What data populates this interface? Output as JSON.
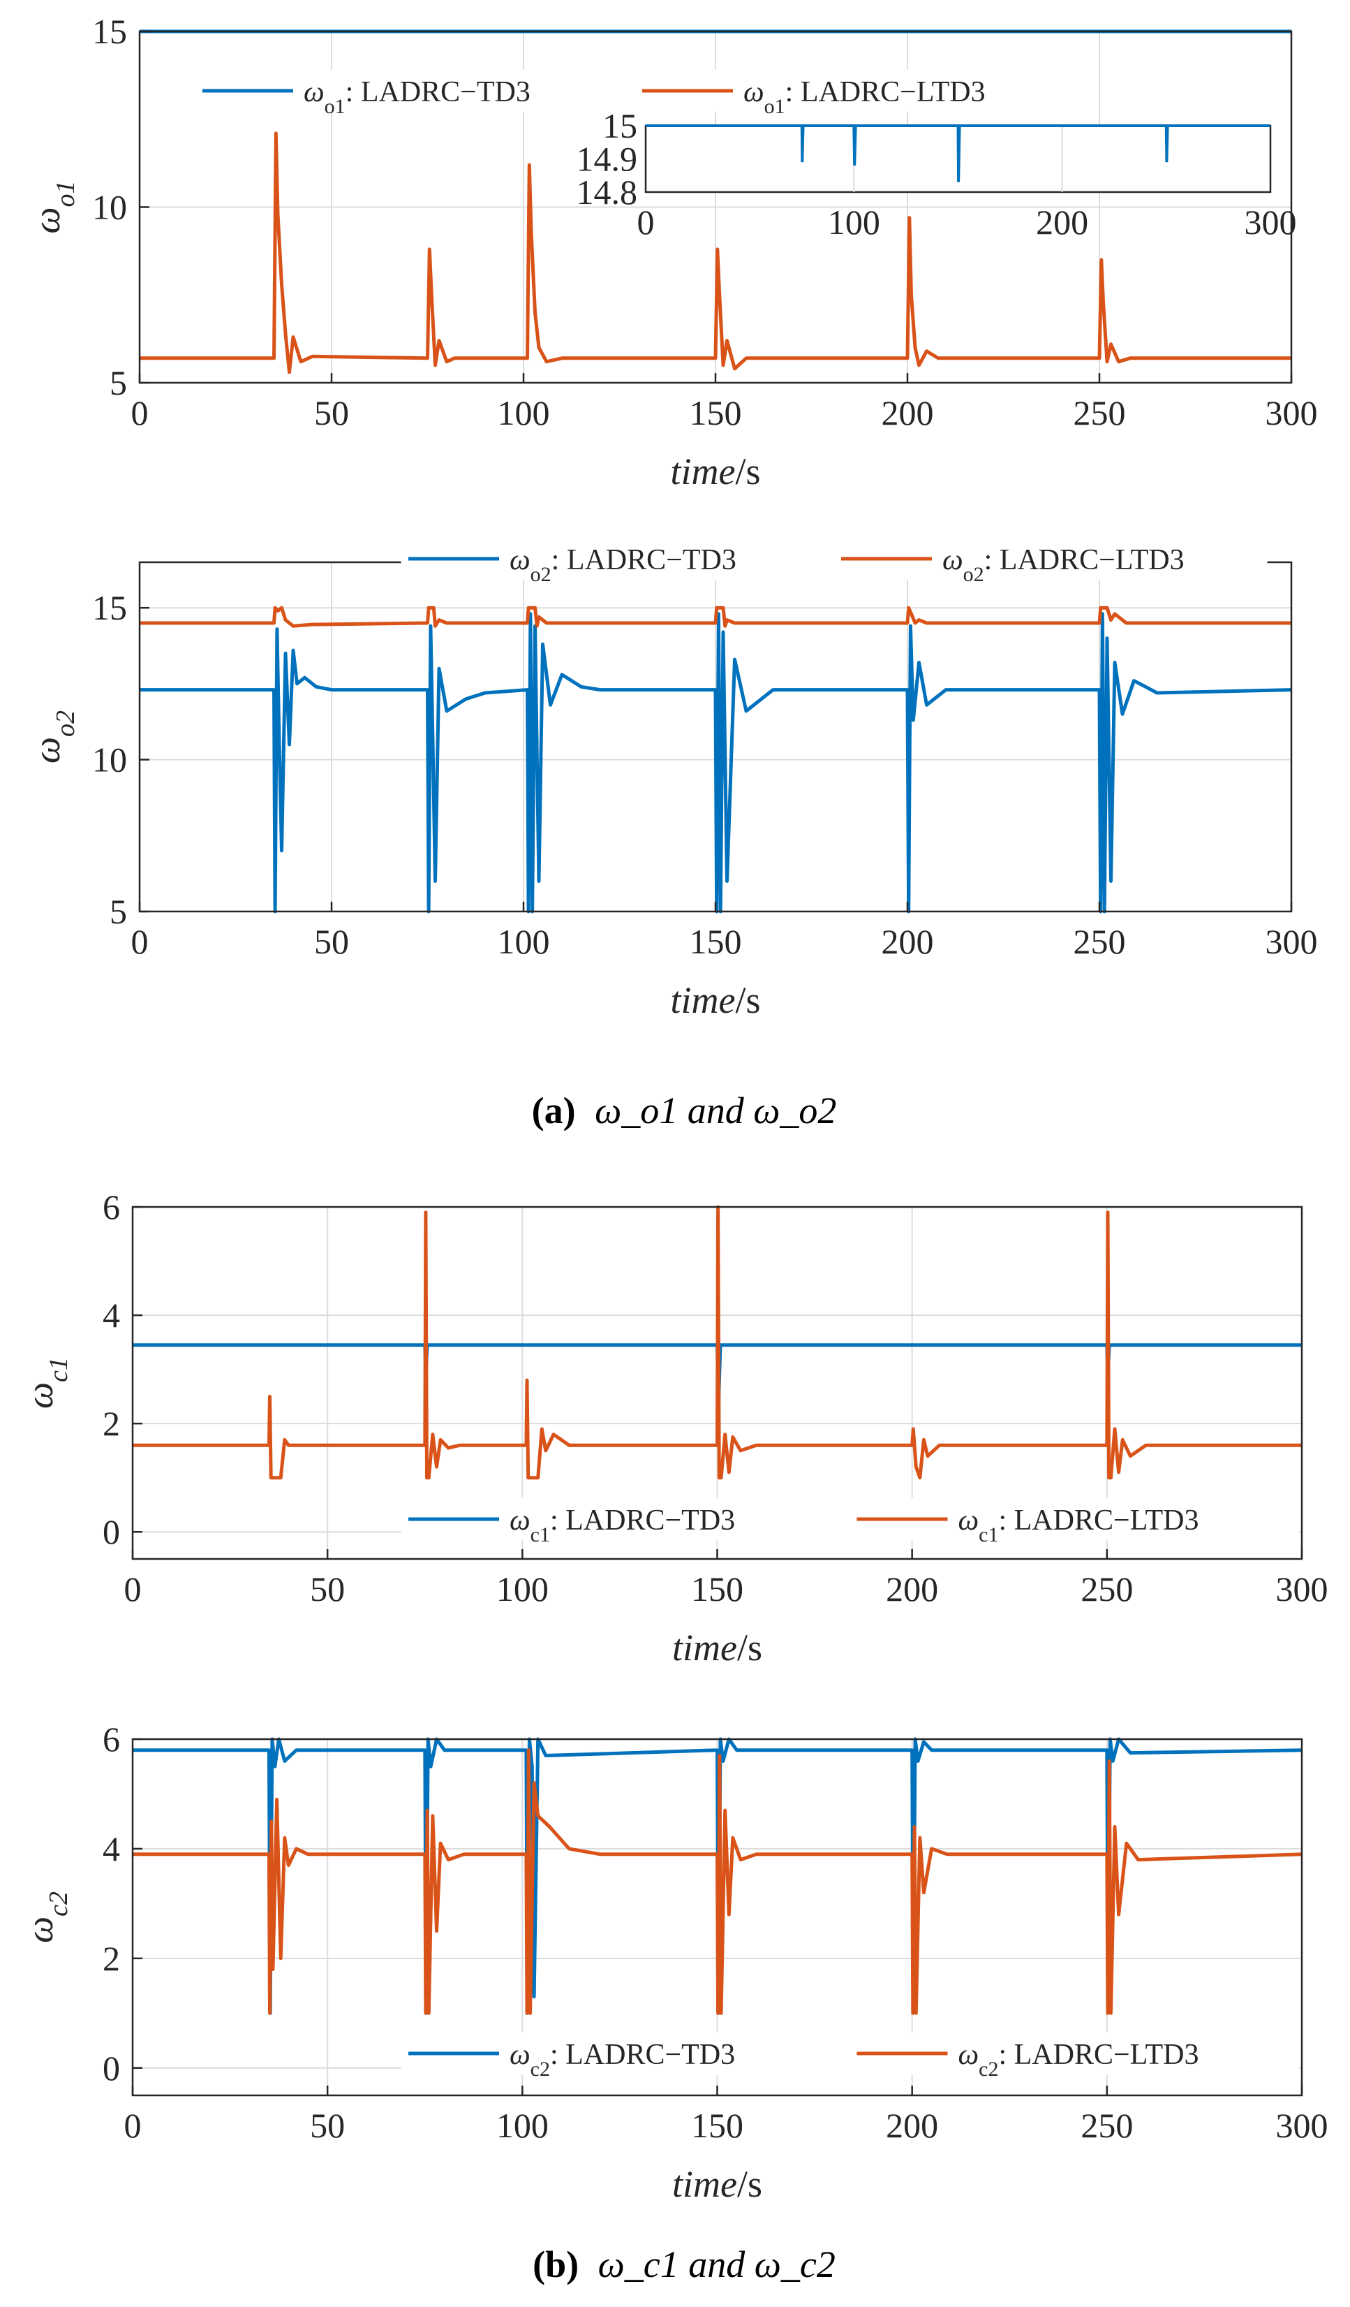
{
  "captions": {
    "a": {
      "tag": "(a)",
      "text": "ω_o1 and ω_o2"
    },
    "b": {
      "tag": "(b)",
      "text": "ω_c1 and ω_c2"
    }
  },
  "colors": {
    "td3": "#0072BD",
    "ltd3": "#D95319",
    "axis": "#262626",
    "grid": "#DCDCDC"
  },
  "chart_data": [
    {
      "type": "line",
      "ylabel": "ω_o1",
      "xlabel": "time/s",
      "xlim": [
        0,
        300
      ],
      "ylim": [
        5,
        15
      ],
      "xticks": [
        0,
        50,
        100,
        150,
        200,
        250,
        300
      ],
      "yticks": [
        5,
        10,
        15
      ],
      "grid": true,
      "legend": {
        "placement": "top",
        "entries": [
          "ω_o1: LADRC−TD3",
          "ω_o1: LADRC−LTD3"
        ]
      },
      "events": [
        35,
        75,
        101,
        150,
        200,
        250
      ],
      "series": [
        {
          "name": "ω_o1: LADRC−TD3",
          "color": "#0072BD",
          "x": [
            0,
            300
          ],
          "y": [
            15,
            15
          ]
        },
        {
          "name": "ω_o1: LADRC−LTD3",
          "color": "#D95319",
          "x": [
            0,
            35,
            35.5,
            36,
            37,
            38,
            39,
            40,
            42,
            45,
            75,
            75.5,
            76,
            77,
            78,
            80,
            82,
            101,
            101.5,
            102,
            103,
            104,
            106,
            110,
            150,
            150.5,
            151,
            152,
            153,
            155,
            158,
            200,
            200.5,
            201,
            202,
            203,
            205,
            208,
            250,
            250.5,
            251,
            252,
            253,
            255,
            258,
            300
          ],
          "y": [
            5.7,
            5.7,
            12.1,
            9.8,
            7.8,
            6.4,
            5.3,
            6.3,
            5.6,
            5.75,
            5.7,
            8.8,
            7.6,
            5.5,
            6.2,
            5.6,
            5.7,
            5.7,
            11.2,
            9.3,
            7.0,
            6.0,
            5.6,
            5.7,
            5.7,
            8.8,
            7.6,
            5.5,
            6.2,
            5.4,
            5.7,
            5.7,
            9.7,
            7.5,
            6.0,
            5.5,
            5.9,
            5.7,
            5.7,
            8.5,
            7.3,
            5.6,
            6.1,
            5.6,
            5.7,
            5.7
          ]
        }
      ],
      "inset": {
        "xlim": [
          0,
          300
        ],
        "ylim": [
          14.8,
          15
        ],
        "xticks": [
          0,
          100,
          200,
          300
        ],
        "yticks": [
          14.8,
          14.9,
          15
        ],
        "series": {
          "name": "ω_o1: LADRC−TD3",
          "color": "#0072BD",
          "x": [
            0,
            75,
            75.2,
            75.6,
            100,
            100.3,
            100.8,
            150,
            150.2,
            150.7,
            250,
            250.2,
            250.6,
            300
          ],
          "y": [
            15,
            15,
            14.89,
            15,
            15,
            14.88,
            15,
            15,
            14.83,
            15,
            15,
            14.89,
            15,
            15
          ]
        }
      }
    },
    {
      "type": "line",
      "ylabel": "ω_o2",
      "xlabel": "time/s",
      "xlim": [
        0,
        300
      ],
      "ylim": [
        5,
        16.5
      ],
      "xticks": [
        0,
        50,
        100,
        150,
        200,
        250,
        300
      ],
      "yticks": [
        5,
        10,
        15
      ],
      "grid": true,
      "legend": {
        "placement": "top",
        "entries": [
          "ω_o2: LADRC−TD3",
          "ω_o2: LADRC−LTD3"
        ]
      },
      "events": [
        35,
        75,
        101,
        150,
        200,
        250
      ],
      "series": [
        {
          "name": "ω_o2: LADRC−TD3",
          "color": "#0072BD",
          "x": [
            0,
            35,
            35.3,
            35.8,
            36.3,
            37,
            38,
            39,
            40,
            41,
            43,
            46,
            50,
            75,
            75.3,
            75.8,
            76.3,
            77,
            78,
            80,
            85,
            90,
            101,
            101.3,
            101.8,
            102.3,
            103,
            104,
            105,
            107,
            110,
            115,
            120,
            150,
            150.3,
            150.8,
            151.3,
            152,
            153,
            155,
            158,
            165,
            200,
            200.3,
            200.8,
            201.5,
            203,
            205,
            210,
            250,
            250.3,
            250.8,
            251.3,
            252,
            253,
            254,
            256,
            259,
            265,
            300
          ],
          "y": [
            12.3,
            12.3,
            5,
            14.3,
            11,
            7,
            13.5,
            10.5,
            13.6,
            12.5,
            12.7,
            12.4,
            12.3,
            12.3,
            5,
            14.4,
            11.1,
            6,
            13,
            11.6,
            12,
            12.2,
            12.3,
            5,
            14.8,
            5,
            14.4,
            6,
            13.8,
            11.8,
            12.8,
            12.4,
            12.3,
            12.3,
            5,
            14.8,
            5,
            14.2,
            6,
            13.3,
            11.6,
            12.3,
            12.3,
            5,
            14.4,
            11.3,
            13.2,
            11.8,
            12.3,
            12.3,
            5,
            14.8,
            5,
            14,
            6,
            13.2,
            11.5,
            12.6,
            12.2,
            12.3
          ]
        },
        {
          "name": "ω_o2: LADRC−LTD3",
          "color": "#D95319",
          "x": [
            0,
            35,
            35.3,
            36,
            37,
            38,
            40,
            45,
            75,
            75.3,
            76,
            76.6,
            77,
            78,
            80,
            101,
            101.3,
            102,
            103,
            103.5,
            104,
            106,
            150,
            150.3,
            151,
            152,
            152.5,
            153,
            155,
            200,
            200.3,
            201,
            202,
            203,
            205,
            250,
            250.3,
            251,
            252,
            253,
            254,
            257,
            300
          ],
          "y": [
            14.5,
            14.5,
            15,
            14.9,
            15,
            14.6,
            14.4,
            14.45,
            14.5,
            15,
            15,
            15,
            14.4,
            14.6,
            14.5,
            14.5,
            15,
            15,
            15,
            14.4,
            14.7,
            14.5,
            14.5,
            15,
            15,
            15,
            14.4,
            14.6,
            14.5,
            14.5,
            15,
            14.8,
            14.5,
            14.6,
            14.5,
            14.5,
            15,
            15,
            15,
            14.6,
            14.8,
            14.5,
            14.5
          ]
        }
      ]
    },
    {
      "type": "line",
      "ylabel": "ω_c1",
      "xlabel": "time/s",
      "xlim": [
        0,
        300
      ],
      "ylim": [
        -0.5,
        6
      ],
      "xticks": [
        0,
        50,
        100,
        150,
        200,
        250,
        300
      ],
      "yticks": [
        0,
        2,
        4,
        6
      ],
      "grid": true,
      "legend": {
        "placement": "bottom-right",
        "entries": [
          "ω_c1: LADRC−TD3",
          "ω_c1: LADRC−LTD3"
        ]
      },
      "events": [
        35,
        75,
        101,
        150,
        200,
        250
      ],
      "series": [
        {
          "name": "ω_c1: LADRC−TD3",
          "color": "#0072BD",
          "x": [
            0,
            75,
            75.2,
            75.6,
            150,
            150.3,
            150.8,
            250,
            250.2,
            250.6,
            300
          ],
          "y": [
            3.45,
            3.45,
            2.9,
            3.45,
            3.45,
            2.3,
            3.45,
            3.45,
            2.9,
            3.45,
            3.45
          ]
        },
        {
          "name": "ω_c1: LADRC−LTD3",
          "color": "#D95319",
          "x": [
            0,
            35,
            35.2,
            35.5,
            36,
            38,
            39,
            40,
            43,
            75,
            75.2,
            75.5,
            76,
            77,
            78,
            79,
            81,
            84,
            101,
            101.2,
            101.5,
            102,
            104,
            105,
            106,
            108,
            112,
            150,
            150.2,
            150.5,
            151,
            152,
            153,
            154,
            156,
            160,
            200,
            200.3,
            201,
            202,
            203,
            204,
            207,
            250,
            250.2,
            250.5,
            251,
            252,
            253,
            254,
            256,
            260,
            300
          ],
          "y": [
            1.6,
            1.6,
            2.5,
            1.0,
            1.0,
            1.0,
            1.7,
            1.6,
            1.6,
            1.6,
            5.9,
            1.0,
            1.0,
            1.8,
            1.2,
            1.7,
            1.55,
            1.6,
            1.6,
            2.8,
            1.0,
            1.0,
            1.0,
            1.9,
            1.5,
            1.8,
            1.6,
            1.6,
            6.0,
            1.0,
            1.0,
            1.8,
            1.1,
            1.75,
            1.5,
            1.6,
            1.6,
            1.9,
            1.2,
            1.0,
            1.7,
            1.4,
            1.6,
            1.6,
            5.9,
            1.0,
            1.0,
            1.9,
            1.1,
            1.7,
            1.4,
            1.6,
            1.6
          ]
        }
      ]
    },
    {
      "type": "line",
      "ylabel": "ω_c2",
      "xlabel": "time/s",
      "xlim": [
        0,
        300
      ],
      "ylim": [
        -0.5,
        6
      ],
      "xticks": [
        0,
        50,
        100,
        150,
        200,
        250,
        300
      ],
      "yticks": [
        0,
        2,
        4,
        6
      ],
      "grid": true,
      "legend": {
        "placement": "bottom-right",
        "entries": [
          "ω_c2: LADRC−TD3",
          "ω_c2: LADRC−LTD3"
        ]
      },
      "events": [
        35,
        75,
        101,
        150,
        200,
        250
      ],
      "series": [
        {
          "name": "ω_c2: LADRC−TD3",
          "color": "#0072BD",
          "x": [
            0,
            35,
            35.3,
            35.8,
            36.5,
            37.5,
            39,
            42,
            75,
            75.3,
            75.8,
            76.5,
            78,
            80,
            101,
            101.3,
            101.8,
            102.5,
            103,
            104,
            106,
            150,
            150.3,
            150.8,
            151.5,
            153,
            155,
            200,
            200.3,
            200.8,
            201.5,
            203,
            205,
            250,
            250.3,
            250.8,
            251.5,
            253,
            256,
            300
          ],
          "y": [
            5.8,
            5.8,
            1.0,
            6.0,
            5.5,
            6.0,
            5.6,
            5.8,
            5.8,
            1.0,
            6.0,
            5.5,
            6.0,
            5.8,
            5.8,
            1.0,
            6.0,
            5.5,
            1.3,
            6.0,
            5.7,
            5.8,
            1.0,
            6.0,
            5.6,
            6.0,
            5.8,
            5.8,
            1.1,
            6.0,
            5.6,
            5.95,
            5.8,
            5.8,
            1.1,
            6.0,
            5.6,
            6.0,
            5.75,
            5.8
          ]
        },
        {
          "name": "ω_c2: LADRC−LTD3",
          "color": "#D95319",
          "x": [
            0,
            35,
            35.2,
            35.6,
            36,
            37,
            38,
            39,
            40,
            42,
            45,
            75,
            75.2,
            75.6,
            76,
            77,
            78,
            79,
            81,
            85,
            101,
            101.2,
            101.6,
            102,
            103,
            104,
            107,
            112,
            120,
            150,
            150.2,
            150.6,
            151,
            152,
            153,
            154,
            156,
            160,
            200,
            200.2,
            200.6,
            201,
            202,
            203,
            205,
            209,
            250,
            250.2,
            250.6,
            251,
            252,
            253,
            255,
            258,
            300
          ],
          "y": [
            3.9,
            3.9,
            1.0,
            4.5,
            1.8,
            4.9,
            2.0,
            4.2,
            3.7,
            4.0,
            3.9,
            3.9,
            1.0,
            4.7,
            1.0,
            4.6,
            2.5,
            4.1,
            3.8,
            3.9,
            3.9,
            1.0,
            5.8,
            1.0,
            5.2,
            4.6,
            4.4,
            4.0,
            3.9,
            3.9,
            1.0,
            5.7,
            1.0,
            4.7,
            2.8,
            4.2,
            3.8,
            3.9,
            3.9,
            1.0,
            4.4,
            1.0,
            4.2,
            3.2,
            4.0,
            3.9,
            3.9,
            1.0,
            5.6,
            1.0,
            4.4,
            2.8,
            4.1,
            3.8,
            3.9
          ]
        }
      ]
    }
  ]
}
